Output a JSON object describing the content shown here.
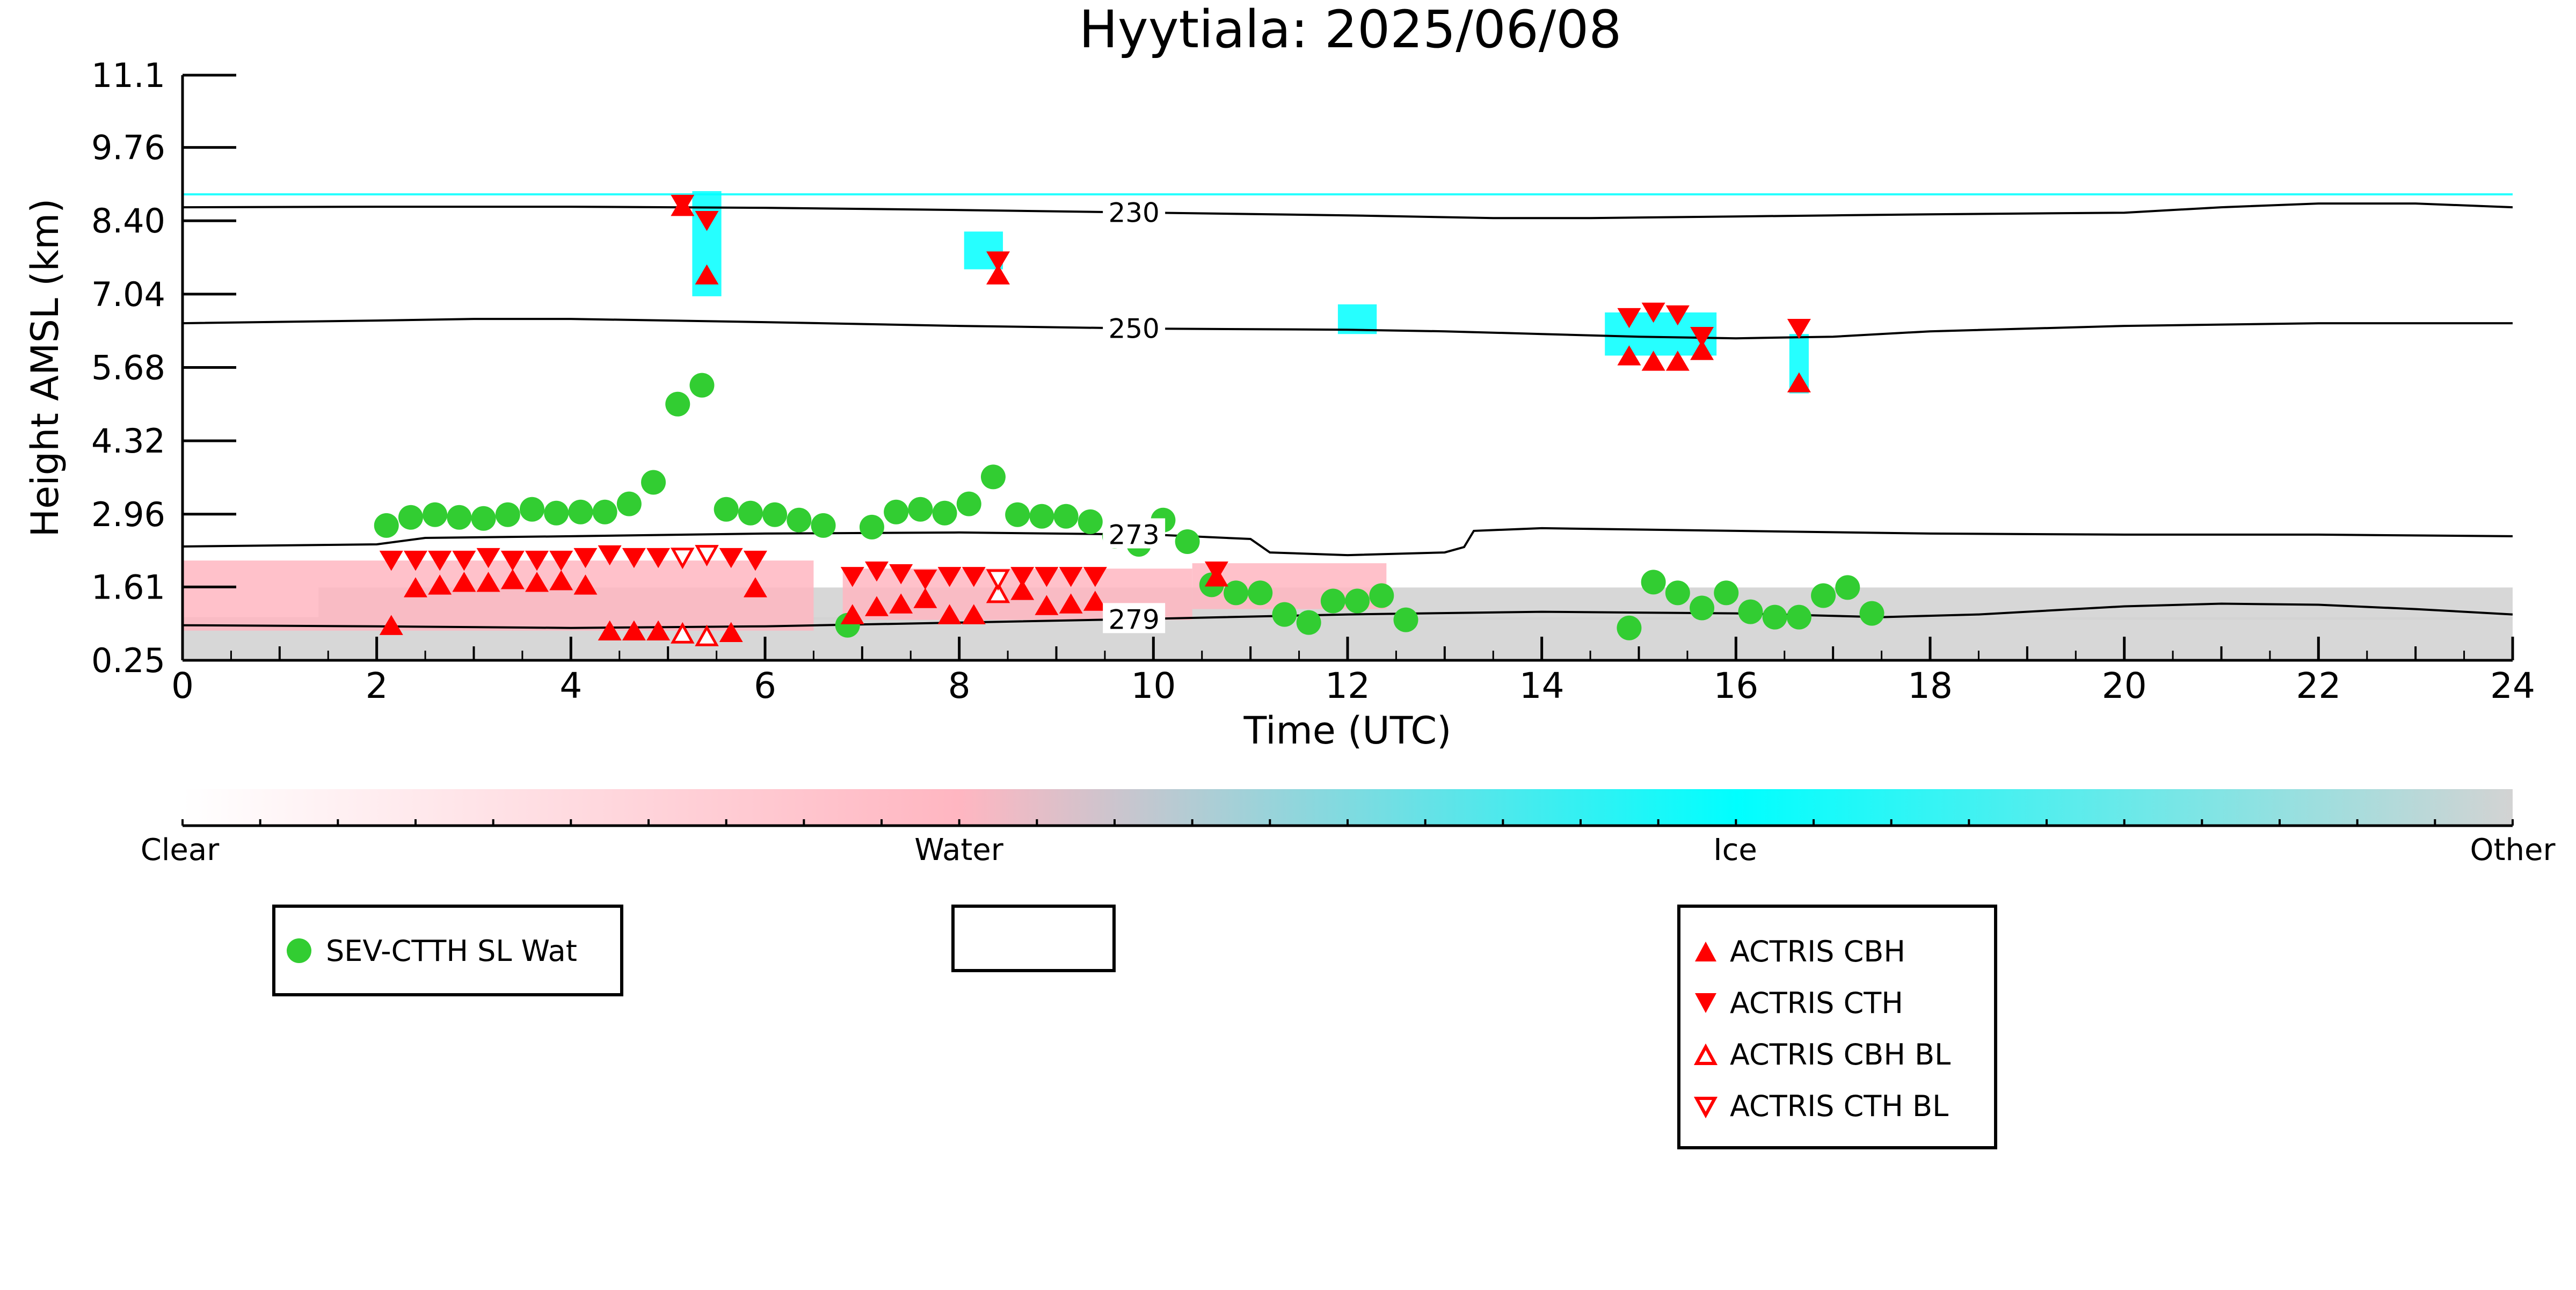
{
  "title": "Hyytiala: 2025/06/08",
  "chart_data": {
    "type": "scatter",
    "title": "Hyytiala: 2025/06/08",
    "xlabel": "Time (UTC)",
    "ylabel": "Height AMSL (km)",
    "xlim": [
      0,
      24
    ],
    "ylim": [
      0.25,
      11.1
    ],
    "x_ticks": [
      "0",
      "2",
      "4",
      "6",
      "8",
      "10",
      "12",
      "14",
      "16",
      "18",
      "20",
      "22",
      "24"
    ],
    "y_ticks": [
      "0.25",
      "1.61",
      "2.96",
      "4.32",
      "5.68",
      "7.04",
      "8.40",
      "9.76",
      "11.1"
    ],
    "y_tick_values": [
      0.25,
      1.61,
      2.96,
      4.32,
      5.68,
      7.04,
      8.4,
      9.76,
      11.1
    ],
    "grid": false,
    "colorbar": {
      "labels": [
        "Clear",
        "Water",
        "Ice",
        "Other"
      ],
      "colors": {
        "clear": "#ffffff",
        "water": "#ffb6c1",
        "ice": "#00ffff",
        "other": "#d3d3d3"
      }
    },
    "isotherms": [
      {
        "label": "230",
        "x": [
          0,
          2,
          4,
          6,
          8,
          10,
          12,
          13.5,
          14.5,
          16,
          17,
          18,
          20,
          21,
          22,
          23,
          24
        ],
        "y": [
          8.65,
          8.66,
          8.66,
          8.64,
          8.6,
          8.55,
          8.5,
          8.45,
          8.45,
          8.48,
          8.5,
          8.52,
          8.55,
          8.65,
          8.72,
          8.72,
          8.65
        ]
      },
      {
        "label": "250",
        "x": [
          0,
          2,
          3,
          4,
          6,
          8,
          10,
          12,
          13,
          14,
          15,
          16,
          17,
          18,
          20,
          22,
          24
        ],
        "y": [
          6.5,
          6.55,
          6.58,
          6.58,
          6.52,
          6.45,
          6.4,
          6.38,
          6.35,
          6.3,
          6.25,
          6.22,
          6.25,
          6.35,
          6.45,
          6.5,
          6.5
        ]
      },
      {
        "label": "273",
        "x": [
          0,
          2,
          2.5,
          4,
          6,
          8,
          10,
          11,
          11.2,
          12,
          13,
          13.2,
          13.3,
          14,
          16,
          18,
          20,
          22,
          24
        ],
        "y": [
          2.36,
          2.4,
          2.52,
          2.55,
          2.6,
          2.62,
          2.58,
          2.5,
          2.25,
          2.2,
          2.25,
          2.35,
          2.65,
          2.7,
          2.65,
          2.6,
          2.58,
          2.58,
          2.55
        ]
      },
      {
        "label": "279",
        "x": [
          0,
          2,
          4,
          6,
          8,
          10,
          12,
          14,
          16,
          17.5,
          18.5,
          20,
          21,
          22,
          23,
          24
        ],
        "y": [
          0.9,
          0.88,
          0.85,
          0.88,
          0.95,
          1.02,
          1.1,
          1.15,
          1.12,
          1.05,
          1.1,
          1.25,
          1.3,
          1.28,
          1.2,
          1.1
        ]
      }
    ],
    "series": [
      {
        "name": "SEV-CTTH SL Wat",
        "marker": "circle",
        "color": "#32cd32",
        "x": [
          2.1,
          2.35,
          2.6,
          2.85,
          3.1,
          3.35,
          3.6,
          3.85,
          4.1,
          4.35,
          4.6,
          4.85,
          5.1,
          5.35,
          5.6,
          5.85,
          6.1,
          6.35,
          6.6,
          6.85,
          7.1,
          7.35,
          7.6,
          7.85,
          8.1,
          8.35,
          8.6,
          8.85,
          9.1,
          9.35,
          9.6,
          9.85,
          10.1,
          10.35,
          10.6,
          10.85,
          11.1,
          11.35,
          11.6,
          11.85,
          12.1,
          12.35,
          12.6,
          14.9,
          15.15,
          15.4,
          15.65,
          15.9,
          16.15,
          16.4,
          16.65,
          16.9,
          17.15,
          17.4
        ],
        "y": [
          2.75,
          2.9,
          2.95,
          2.9,
          2.88,
          2.95,
          3.05,
          2.98,
          3.0,
          3.0,
          3.15,
          3.55,
          5.0,
          5.35,
          3.05,
          2.98,
          2.95,
          2.85,
          2.75,
          0.9,
          2.72,
          3.0,
          3.05,
          2.98,
          3.15,
          3.65,
          2.95,
          2.92,
          2.92,
          2.82,
          2.55,
          2.4,
          2.85,
          2.45,
          1.65,
          1.5,
          1.5,
          1.1,
          0.95,
          1.35,
          1.35,
          1.45,
          1.0,
          0.85,
          1.7,
          1.5,
          1.22,
          1.5,
          1.15,
          1.05,
          1.05,
          1.45,
          1.6,
          1.12
        ]
      },
      {
        "name": "ACTRIS CBH",
        "marker": "triangle-up",
        "color": "#ff0000",
        "filled": true,
        "x": [
          2.15,
          2.4,
          2.65,
          2.9,
          3.15,
          3.4,
          3.65,
          3.9,
          4.15,
          4.4,
          4.65,
          4.9,
          5.15,
          5.4,
          5.65,
          5.9,
          6.9,
          7.15,
          7.4,
          7.65,
          7.9,
          8.15,
          8.4,
          8.65,
          8.9,
          9.15,
          9.4,
          10.65,
          14.9,
          15.15,
          15.4,
          15.65,
          16.65
        ],
        "y": [
          0.85,
          1.55,
          1.6,
          1.65,
          1.65,
          1.7,
          1.65,
          1.68,
          1.6,
          0.75,
          0.75,
          0.75,
          8.62,
          7.35,
          0.72,
          1.55,
          1.05,
          1.2,
          1.25,
          1.35,
          1.05,
          1.05,
          7.35,
          1.5,
          1.22,
          1.25,
          1.3,
          1.75,
          5.85,
          5.75,
          5.75,
          5.95,
          5.35
        ]
      },
      {
        "name": "ACTRIS CTH",
        "marker": "triangle-down",
        "color": "#ff0000",
        "filled": true,
        "x": [
          2.15,
          2.4,
          2.65,
          2.9,
          3.15,
          3.4,
          3.65,
          3.9,
          4.15,
          4.4,
          4.65,
          4.9,
          5.15,
          5.4,
          5.65,
          5.9,
          6.9,
          7.15,
          7.4,
          7.65,
          7.9,
          8.15,
          8.4,
          8.65,
          8.9,
          9.15,
          9.4,
          10.65,
          14.9,
          15.15,
          15.4,
          15.65,
          16.65
        ],
        "y": [
          2.15,
          2.15,
          2.15,
          2.15,
          2.2,
          2.15,
          2.15,
          2.15,
          2.2,
          2.25,
          2.2,
          2.2,
          8.75,
          8.45,
          2.2,
          2.15,
          1.85,
          1.95,
          1.9,
          1.8,
          1.85,
          1.85,
          7.7,
          1.85,
          1.85,
          1.85,
          1.85,
          1.95,
          6.65,
          6.75,
          6.7,
          6.3,
          6.45
        ]
      },
      {
        "name": "ACTRIS CBH BL",
        "marker": "triangle-up",
        "color": "#ff0000",
        "filled": false,
        "x": [
          5.15,
          5.4,
          8.4
        ],
        "y": [
          0.7,
          0.65,
          1.45
        ]
      },
      {
        "name": "ACTRIS CTH BL",
        "marker": "triangle-down",
        "color": "#ff0000",
        "filled": false,
        "x": [
          5.15,
          5.4,
          8.4
        ],
        "y": [
          2.2,
          2.25,
          1.8
        ]
      }
    ],
    "cloud_regions": [
      {
        "phase": "water",
        "x0": 0.0,
        "x1": 6.5,
        "y0": 0.8,
        "y1": 2.1
      },
      {
        "phase": "water",
        "x0": 6.8,
        "x1": 10.4,
        "y0": 1.0,
        "y1": 1.95
      },
      {
        "phase": "water",
        "x0": 10.4,
        "x1": 12.4,
        "y0": 1.2,
        "y1": 2.05
      },
      {
        "phase": "ice",
        "x0": 5.25,
        "x1": 5.55,
        "y0": 7.0,
        "y1": 8.95
      },
      {
        "phase": "ice",
        "x0": 8.05,
        "x1": 8.45,
        "y0": 7.5,
        "y1": 8.2
      },
      {
        "phase": "ice",
        "x0": 14.65,
        "x1": 15.8,
        "y0": 5.9,
        "y1": 6.7
      },
      {
        "phase": "ice",
        "x0": 16.55,
        "x1": 16.75,
        "y0": 5.2,
        "y1": 6.3
      },
      {
        "phase": "ice",
        "x0": 11.9,
        "x1": 12.3,
        "y0": 6.3,
        "y1": 6.85
      },
      {
        "phase": "ice",
        "x0": 0.0,
        "x1": 24.0,
        "y0": 8.87,
        "y1": 8.91
      },
      {
        "phase": "other",
        "x0": 0.0,
        "x1": 24.0,
        "y0": 0.25,
        "y1": 1.05
      },
      {
        "phase": "other",
        "x0": 1.4,
        "x1": 24.0,
        "y0": 1.0,
        "y1": 1.6
      }
    ],
    "legends": [
      {
        "entries": [
          "SEV-CTTH SL Wat"
        ]
      },
      {
        "entries": []
      },
      {
        "entries": [
          "ACTRIS CBH",
          "ACTRIS CTH",
          "ACTRIS CBH BL",
          "ACTRIS CTH BL"
        ]
      }
    ]
  }
}
